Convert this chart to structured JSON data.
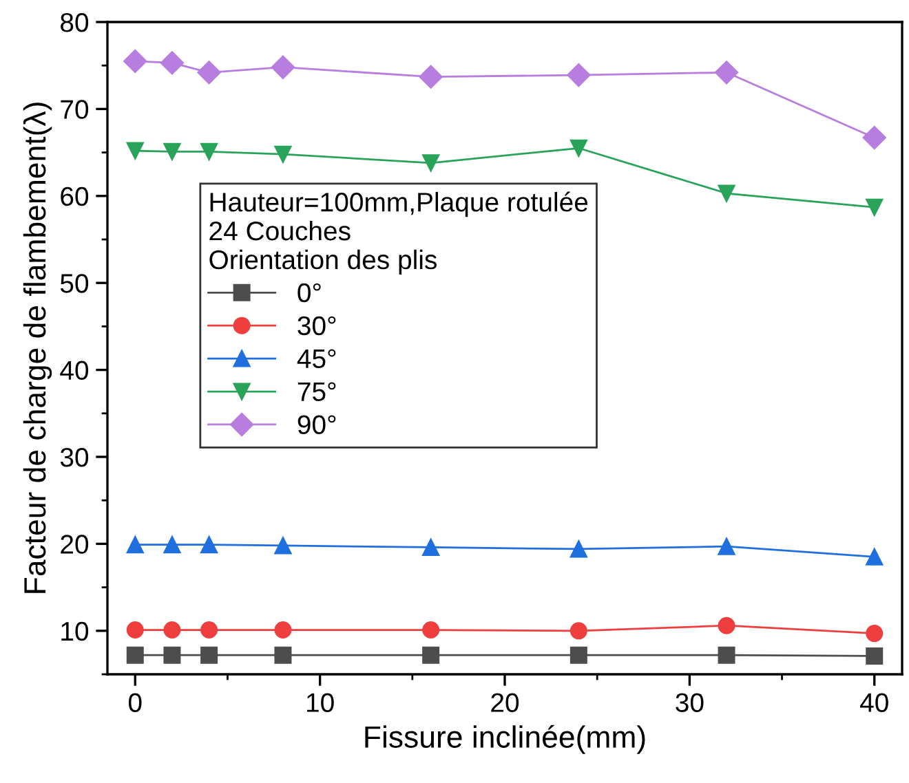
{
  "chart_data": {
    "type": "line",
    "xlabel": "Fissure inclinée(mm)",
    "ylabel": "Facteur de charge de flambement(λ)",
    "legend_title": "Hauteur=100mm,Plaque rotulée\n24 Couches\nOrientation des plis",
    "x": [
      0,
      2,
      4,
      8,
      16,
      24,
      32,
      40
    ],
    "series": [
      {
        "name": "0°",
        "color": "#4d4d4d",
        "marker": "square",
        "values": [
          7.2,
          7.2,
          7.2,
          7.2,
          7.2,
          7.2,
          7.2,
          7.1
        ]
      },
      {
        "name": "30°",
        "color": "#ee3e3e",
        "marker": "circle",
        "values": [
          10.1,
          10.1,
          10.1,
          10.1,
          10.1,
          10.0,
          10.6,
          9.7
        ]
      },
      {
        "name": "45°",
        "color": "#1f6fde",
        "marker": "triangle",
        "values": [
          19.9,
          19.9,
          19.9,
          19.8,
          19.6,
          19.4,
          19.7,
          18.5
        ]
      },
      {
        "name": "75°",
        "color": "#2aa35a",
        "marker": "triangle_down",
        "values": [
          65.2,
          65.1,
          65.1,
          64.8,
          63.8,
          65.5,
          60.3,
          58.7
        ]
      },
      {
        "name": "90°",
        "color": "#b77ee0",
        "marker": "diamond",
        "values": [
          75.5,
          75.3,
          74.2,
          74.8,
          73.7,
          73.9,
          74.2,
          66.7
        ]
      }
    ],
    "xlim": [
      -1.5,
      41.5
    ],
    "xticks": [
      0,
      10,
      20,
      30,
      40
    ],
    "ylim": [
      5,
      80
    ],
    "yticks": [
      10,
      20,
      30,
      40,
      50,
      60,
      70,
      80
    ],
    "grid": false,
    "legend": "center left",
    "line_style": "solid"
  }
}
